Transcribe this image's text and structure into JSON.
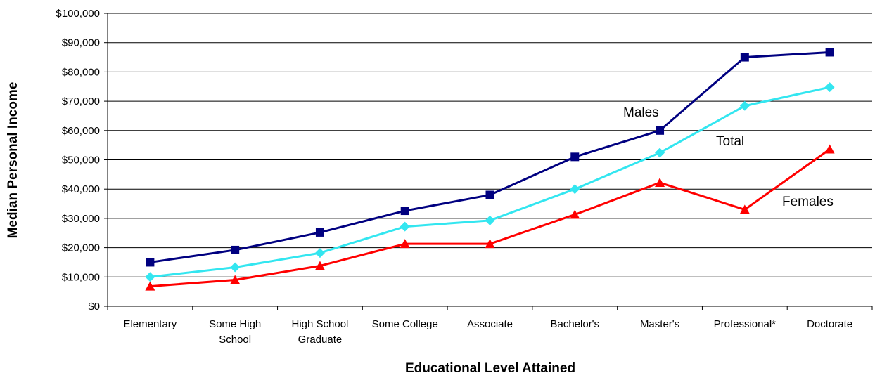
{
  "chart_data": {
    "type": "line",
    "title": "",
    "xlabel": "Educational Level Attained",
    "ylabel": "Median Personal Income",
    "ylim": [
      0,
      100000
    ],
    "y_ticks": [
      {
        "value": 0,
        "label": "$0"
      },
      {
        "value": 10000,
        "label": "$10,000"
      },
      {
        "value": 20000,
        "label": "$20,000"
      },
      {
        "value": 30000,
        "label": "$30,000"
      },
      {
        "value": 40000,
        "label": "$40,000"
      },
      {
        "value": 50000,
        "label": "$50,000"
      },
      {
        "value": 60000,
        "label": "$60,000"
      },
      {
        "value": 70000,
        "label": "$70,000"
      },
      {
        "value": 80000,
        "label": "$80,000"
      },
      {
        "value": 90000,
        "label": "$90,000"
      },
      {
        "value": 100000,
        "label": "$100,000"
      }
    ],
    "categories": [
      [
        "Elementary"
      ],
      [
        "Some High",
        "School"
      ],
      [
        "High School",
        "Graduate"
      ],
      [
        "Some College"
      ],
      [
        "Associate"
      ],
      [
        "Bachelor's"
      ],
      [
        "Master's"
      ],
      [
        "Professional*"
      ],
      [
        "Doctorate"
      ]
    ],
    "grid": true,
    "legend": "none",
    "series": [
      {
        "name": "Males",
        "color": "#000080",
        "marker": "square",
        "values": [
          15000,
          19200,
          25200,
          32600,
          38000,
          51000,
          60000,
          85000,
          86700
        ]
      },
      {
        "name": "Total",
        "color": "#33E6F0",
        "marker": "diamond",
        "values": [
          10000,
          13300,
          18200,
          27200,
          29300,
          40000,
          52400,
          68400,
          74800
        ]
      },
      {
        "name": "Females",
        "color": "#FF0000",
        "marker": "triangle",
        "values": [
          6800,
          9000,
          13800,
          21300,
          21300,
          31300,
          42200,
          33000,
          53600
        ]
      }
    ]
  }
}
